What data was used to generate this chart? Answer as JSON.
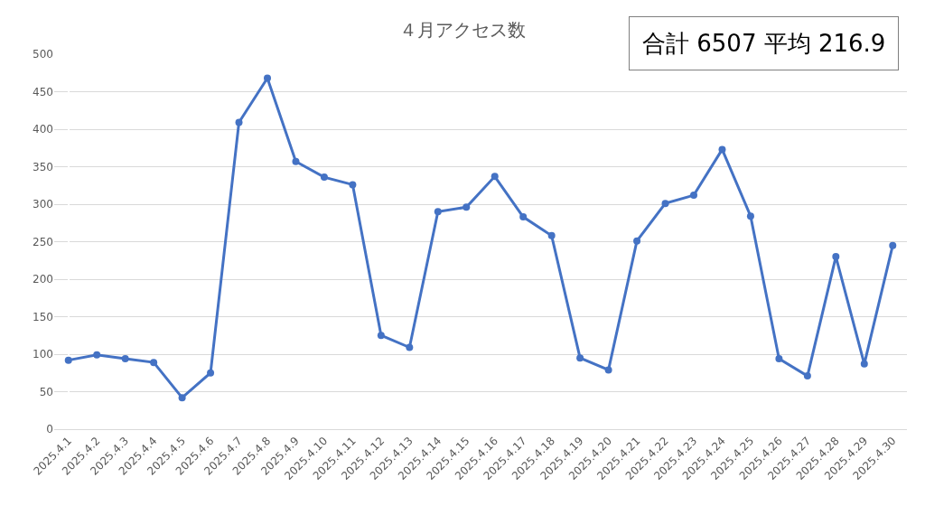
{
  "chart_data": {
    "type": "line",
    "title": "４月アクセス数",
    "categories": [
      "2025.4.1",
      "2025.4.2",
      "2025.4.3",
      "2025.4.4",
      "2025.4.5",
      "2025.4.6",
      "2025.4.7",
      "2025.4.8",
      "2025.4.9",
      "2025.4.10",
      "2025.4.11",
      "2025.4.12",
      "2025.4.13",
      "2025.4.14",
      "2025.4.15",
      "2025.4.16",
      "2025.4.17",
      "2025.4.18",
      "2025.4.19",
      "2025.4.20",
      "2025.4.21",
      "2025.4.22",
      "2025.4.23",
      "2025.4.24",
      "2025.4.25",
      "2025.4.26",
      "2025.4.27",
      "2025.4.28",
      "2025.4.29",
      "2025.4.30"
    ],
    "series": [
      {
        "color": "#4472c4",
        "values": [
          92,
          99,
          94,
          89,
          42,
          75,
          409,
          468,
          357,
          336,
          326,
          125,
          109,
          290,
          296,
          337,
          283,
          258,
          95,
          79,
          251,
          301,
          312,
          373,
          284,
          94,
          71,
          230,
          87,
          245
        ]
      }
    ],
    "ylim": [
      0,
      500
    ],
    "yticks": [
      0,
      50,
      100,
      150,
      200,
      250,
      300,
      350,
      400,
      450,
      500
    ],
    "grid": "y",
    "marker": "circle",
    "line_style": "solid",
    "annotations": [
      "合計 6507 平均 216.9"
    ]
  }
}
